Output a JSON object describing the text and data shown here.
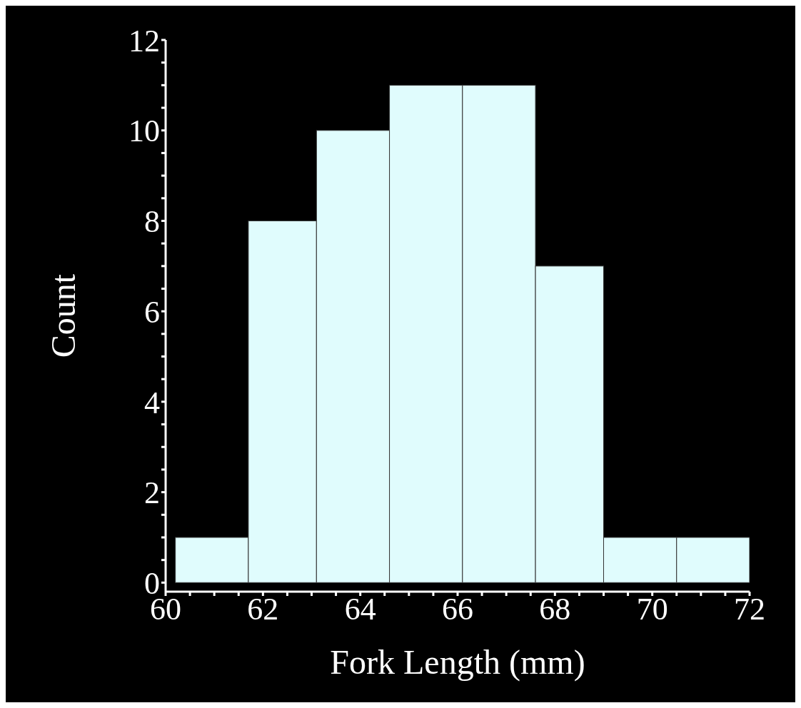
{
  "chart_data": {
    "type": "histogram",
    "xlabel": "Fork Length (mm)",
    "ylabel": "Count",
    "bins": [
      60.2,
      61.7,
      63.1,
      64.6,
      66.1,
      67.6,
      69.0,
      70.5,
      72.0
    ],
    "values": [
      1,
      8,
      10,
      11,
      11,
      7,
      1,
      1
    ],
    "color": "#e0fcfd",
    "xlim": [
      60,
      72
    ],
    "ylim": [
      -0.2,
      12
    ],
    "xticks": [
      60,
      {
        "value": 60.5,
        "label": null
      },
      {
        "value": 61,
        "label": null
      },
      {
        "value": 61.5,
        "label": null
      },
      62,
      {
        "value": 62.5,
        "label": null
      },
      {
        "value": 63,
        "label": null
      },
      {
        "value": 63.5,
        "label": null
      },
      64,
      {
        "value": 64.5,
        "label": null
      },
      {
        "value": 65,
        "label": null
      },
      {
        "value": 65.5,
        "label": null
      },
      66,
      {
        "value": 66.5,
        "label": null
      },
      {
        "value": 67,
        "label": null
      },
      {
        "value": 67.5,
        "label": null
      },
      68,
      {
        "value": 68.5,
        "label": null
      },
      {
        "value": 69,
        "label": null
      },
      {
        "value": 69.5,
        "label": null
      },
      70,
      {
        "value": 70.5,
        "label": null
      },
      {
        "value": 71,
        "label": null
      },
      {
        "value": 71.5,
        "label": null
      },
      72
    ],
    "yticks": [
      0,
      {
        "value": 0.5,
        "label": null
      },
      {
        "value": 1,
        "label": null
      },
      {
        "value": 1.5,
        "label": null
      },
      2,
      {
        "value": 2.5,
        "label": null
      },
      {
        "value": 3,
        "label": null
      },
      {
        "value": 3.5,
        "label": null
      },
      4,
      {
        "value": 4.5,
        "label": null
      },
      {
        "value": 5,
        "label": null
      },
      {
        "value": 5.5,
        "label": null
      },
      6,
      {
        "value": 6.5,
        "label": null
      },
      {
        "value": 7,
        "label": null
      },
      {
        "value": 7.5,
        "label": null
      },
      8,
      {
        "value": 8.5,
        "label": null
      },
      {
        "value": 9,
        "label": null
      },
      {
        "value": 9.5,
        "label": null
      },
      10,
      {
        "value": 10.5,
        "label": null
      },
      {
        "value": 11,
        "label": null
      },
      {
        "value": 11.5,
        "label": null
      },
      12
    ],
    "grid": false
  }
}
